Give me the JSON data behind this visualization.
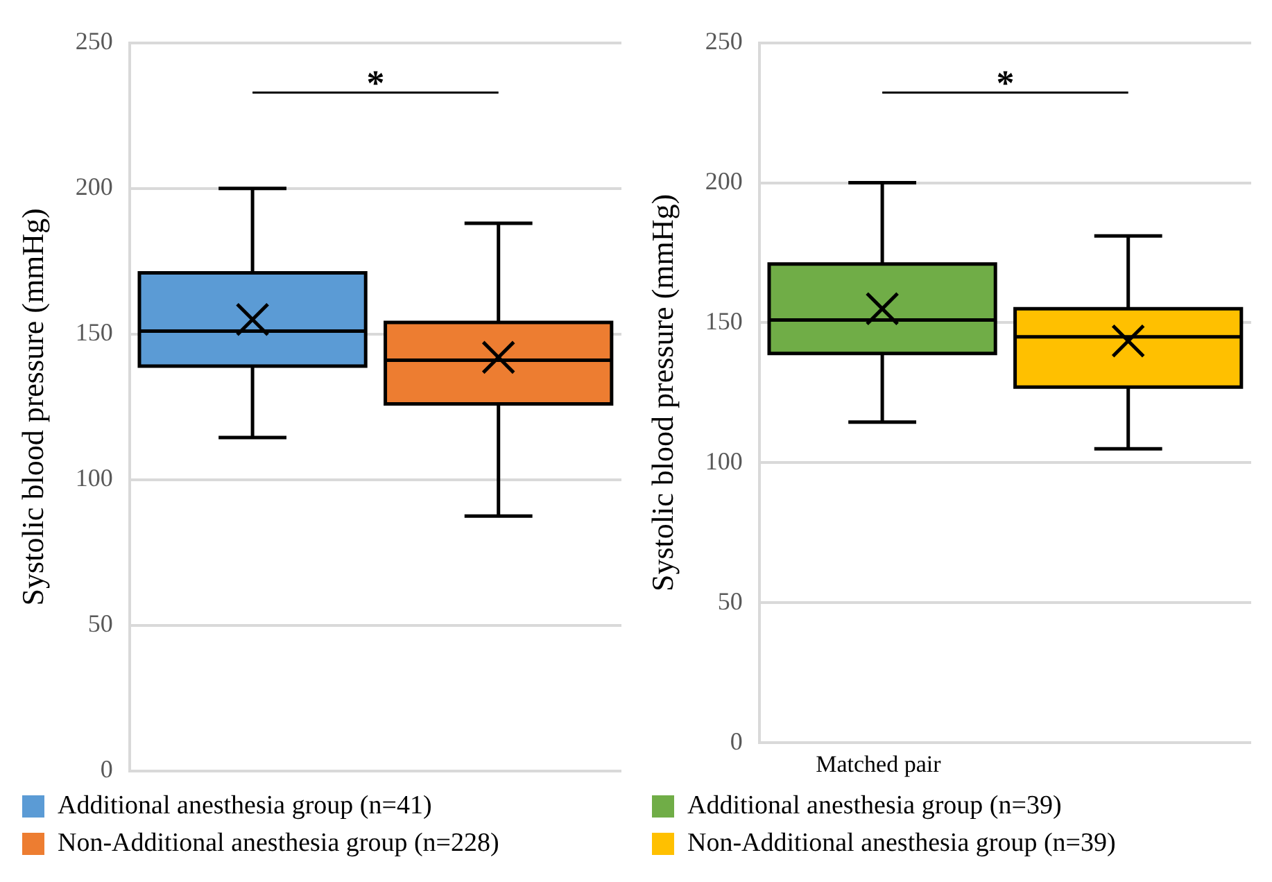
{
  "chart_data": [
    {
      "type": "box",
      "ylabel": "Systolic blood pressure (mmHg)",
      "categories": [
        null,
        null
      ],
      "ylim": [
        0,
        250
      ],
      "yticks": [
        0,
        50,
        100,
        150,
        200,
        250
      ],
      "grid": "y",
      "legend": "bottom",
      "marker": "cross",
      "annotations": [
        "*"
      ],
      "series": [
        {
          "name": "Additional anesthesia group (n=41)",
          "color": "#5b9bd5",
          "boxes": [
            {
              "low": 114.5,
              "q1": 139,
              "median": 151,
              "q3": 171,
              "high": 200,
              "mean": 155
            },
            null
          ]
        },
        {
          "name": "Non-Additional anesthesia group (n=228)",
          "color": "#ed7d31",
          "boxes": [
            null,
            {
              "low": 87.5,
              "q1": 126,
              "median": 141,
              "q3": 154,
              "high": 188,
              "mean": 142
            }
          ]
        }
      ]
    },
    {
      "type": "box",
      "ylabel": "Systolic blood pressure (mmHg)",
      "categories": [
        null,
        null
      ],
      "ylim": [
        0,
        250
      ],
      "yticks": [
        0,
        50,
        100,
        150,
        200,
        250
      ],
      "grid": "y",
      "legend": "bottom",
      "legend_title": "Matched pair",
      "marker": "cross",
      "annotations": [
        "*"
      ],
      "series": [
        {
          "name": "Additional anesthesia group (n=39)",
          "color": "#70ad47",
          "boxes": [
            {
              "low": 114.5,
              "q1": 139,
              "median": 151,
              "q3": 171,
              "high": 200,
              "mean": 155
            },
            null
          ]
        },
        {
          "name": "Non-Additional anesthesia group (n=39)",
          "color": "#ffc000",
          "boxes": [
            null,
            {
              "low": 105,
              "q1": 127,
              "median": 145,
              "q3": 155,
              "high": 181,
              "mean": 143.5
            }
          ]
        }
      ]
    }
  ]
}
